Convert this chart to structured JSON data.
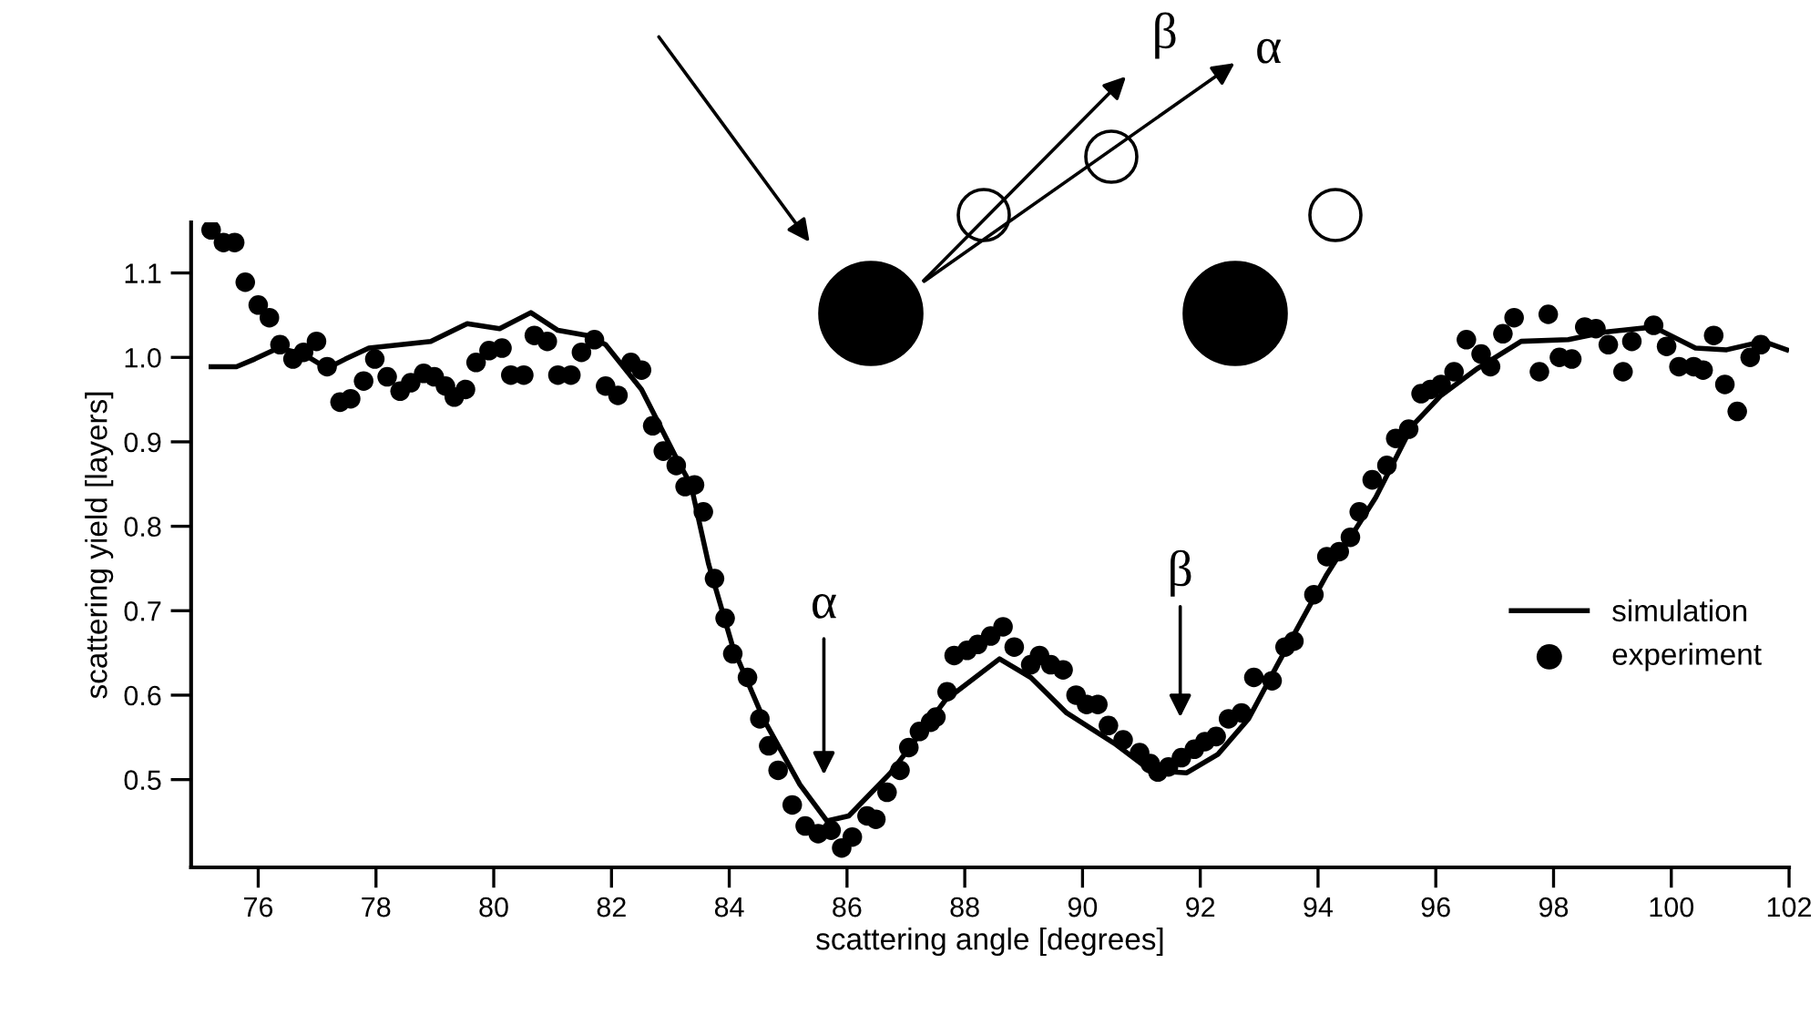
{
  "chart_data": {
    "type": "line",
    "xlabel": "scattering angle [degrees]",
    "ylabel": "scattering yield [layers]",
    "xlim": [
      74.86,
      102
    ],
    "ylim": [
      0.396,
      1.16
    ],
    "xticks": [
      76,
      78,
      80,
      82,
      84,
      86,
      88,
      90,
      92,
      94,
      96,
      98,
      100,
      102
    ],
    "yticks": [
      0.5,
      0.6,
      0.7,
      0.8,
      0.9,
      {
        "value": 1.0,
        "label": "1.0"
      },
      1.1
    ],
    "grid": false,
    "legend": "right",
    "annotations": [
      "α",
      "β",
      "β",
      "α"
    ],
    "series": [
      {
        "name": "simulation",
        "color": "#000000",
        "marker": "none",
        "line_style": "solid",
        "x": [
          75.2,
          75.63,
          75.94,
          76.34,
          76.77,
          77.17,
          77.48,
          77.88,
          78.93,
          79.55,
          80.1,
          80.63,
          81.09,
          81.59,
          81.9,
          82.51,
          83.13,
          83.35,
          83.65,
          84.06,
          84.58,
          85.2,
          85.66,
          86.03,
          86.74,
          87.67,
          88.59,
          89.12,
          89.73,
          90.54,
          91.15,
          91.77,
          92.3,
          92.82,
          93.31,
          94.15,
          94.98,
          95.6,
          96.09,
          96.71,
          97.45,
          98.25,
          98.87,
          99.7,
          100.41,
          100.94,
          101.56,
          101.96
        ],
        "values": [
          0.989,
          0.989,
          0.998,
          1.011,
          1.004,
          0.987,
          0.998,
          1.011,
          1.019,
          1.04,
          1.034,
          1.053,
          1.032,
          1.026,
          1.015,
          0.962,
          0.877,
          0.849,
          0.755,
          0.657,
          0.572,
          0.494,
          0.451,
          0.457,
          0.508,
          0.594,
          0.643,
          0.621,
          0.579,
          0.543,
          0.511,
          0.508,
          0.53,
          0.572,
          0.636,
          0.743,
          0.834,
          0.919,
          0.955,
          0.987,
          1.019,
          1.021,
          1.03,
          1.036,
          1.011,
          1.009,
          1.019,
          1.009
        ]
      },
      {
        "name": "experiment",
        "type": "scatter",
        "color": "#000000",
        "marker": "circle",
        "x": [
          75.2,
          75.41,
          75.6,
          75.78,
          76.0,
          76.19,
          76.37,
          76.59,
          76.77,
          76.99,
          77.17,
          77.39,
          77.57,
          77.79,
          77.98,
          78.19,
          78.41,
          78.59,
          78.81,
          78.99,
          79.18,
          79.33,
          79.52,
          79.7,
          79.92,
          80.14,
          80.29,
          80.51,
          80.69,
          80.91,
          81.09,
          81.31,
          81.49,
          81.71,
          81.9,
          82.11,
          82.33,
          82.51,
          82.7,
          82.88,
          83.1,
          83.25,
          83.41,
          83.56,
          83.75,
          83.93,
          84.06,
          84.31,
          84.52,
          84.67,
          84.83,
          85.07,
          85.29,
          85.51,
          85.73,
          85.91,
          86.09,
          86.34,
          86.49,
          86.68,
          86.9,
          87.05,
          87.23,
          87.42,
          87.51,
          87.7,
          87.82,
          88.04,
          88.22,
          88.44,
          88.65,
          88.84,
          89.12,
          89.27,
          89.46,
          89.67,
          89.89,
          90.07,
          90.26,
          90.44,
          90.69,
          90.97,
          91.15,
          91.28,
          91.46,
          91.68,
          91.9,
          92.08,
          92.27,
          92.48,
          92.7,
          92.91,
          93.22,
          93.44,
          93.59,
          93.93,
          94.15,
          94.36,
          94.55,
          94.7,
          94.92,
          95.17,
          95.32,
          95.54,
          95.75,
          95.91,
          96.09,
          96.31,
          96.52,
          96.77,
          96.93,
          97.14,
          97.33,
          97.76,
          97.91,
          98.1,
          98.31,
          98.53,
          98.72,
          98.93,
          99.18,
          99.33,
          99.7,
          99.92,
          100.13,
          100.38,
          100.54,
          100.72,
          100.91,
          101.12,
          101.34,
          101.52
        ],
        "values": [
          1.151,
          1.136,
          1.136,
          1.089,
          1.062,
          1.047,
          1.015,
          0.998,
          1.006,
          1.019,
          0.989,
          0.947,
          0.951,
          0.972,
          0.998,
          0.977,
          0.96,
          0.97,
          0.981,
          0.977,
          0.966,
          0.953,
          0.962,
          0.994,
          1.008,
          1.011,
          0.979,
          0.979,
          1.026,
          1.019,
          0.979,
          0.979,
          1.006,
          1.021,
          0.966,
          0.955,
          0.994,
          0.985,
          0.919,
          0.889,
          0.872,
          0.847,
          0.849,
          0.817,
          0.738,
          0.691,
          0.649,
          0.621,
          0.572,
          0.54,
          0.511,
          0.47,
          0.445,
          0.436,
          0.44,
          0.419,
          0.432,
          0.457,
          0.453,
          0.485,
          0.511,
          0.538,
          0.557,
          0.568,
          0.574,
          0.604,
          0.647,
          0.653,
          0.66,
          0.67,
          0.681,
          0.657,
          0.636,
          0.647,
          0.636,
          0.63,
          0.6,
          0.589,
          0.589,
          0.564,
          0.547,
          0.532,
          0.519,
          0.509,
          0.515,
          0.526,
          0.536,
          0.545,
          0.551,
          0.572,
          0.579,
          0.621,
          0.617,
          0.657,
          0.664,
          0.719,
          0.764,
          0.77,
          0.787,
          0.817,
          0.855,
          0.872,
          0.904,
          0.915,
          0.957,
          0.962,
          0.968,
          0.983,
          1.021,
          1.004,
          0.989,
          1.028,
          1.047,
          0.983,
          1.051,
          1.0,
          0.998,
          1.036,
          1.034,
          1.015,
          0.983,
          1.019,
          1.038,
          1.013,
          0.989,
          0.989,
          0.985,
          1.026,
          0.968,
          0.936,
          1.0,
          1.015
        ]
      }
    ]
  }
}
